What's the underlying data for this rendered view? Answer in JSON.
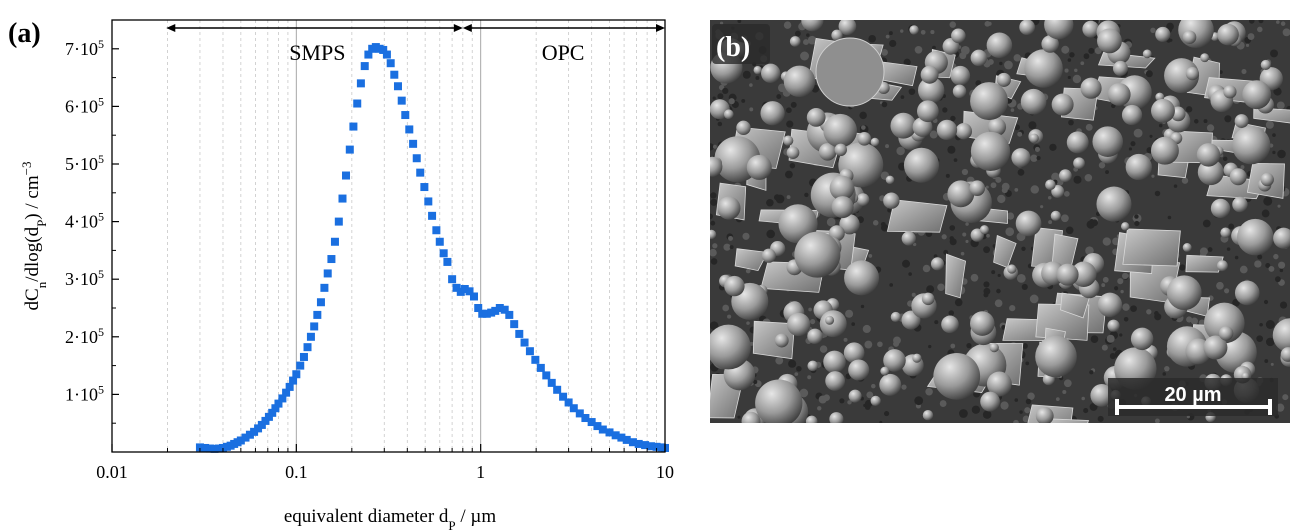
{
  "panel_a_label": "(a)",
  "panel_b_label": "(b)",
  "chart_data": {
    "type": "scatter",
    "title": "",
    "xlabel": "equivalent diameter d_P / µm",
    "ylabel": "dC_n/dlog(d_P) / cm^-3",
    "xscale": "log",
    "xlim": [
      0.01,
      10
    ],
    "ylim": [
      0,
      750000
    ],
    "grid": "vertical minor gridlines (log decades)",
    "marker_color": "#1a6fe0",
    "x_ticks": [
      0.01,
      0.1,
      1,
      10
    ],
    "x_tick_labels": [
      "0.01",
      "0.1",
      "1",
      "10"
    ],
    "y_ticks": [
      100000,
      200000,
      300000,
      400000,
      500000,
      600000,
      700000
    ],
    "y_tick_labels": [
      {
        "mant": "1·10",
        "exp": "5"
      },
      {
        "mant": "2·10",
        "exp": "5"
      },
      {
        "mant": "3·10",
        "exp": "5"
      },
      {
        "mant": "4·10",
        "exp": "5"
      },
      {
        "mant": "5·10",
        "exp": "5"
      },
      {
        "mant": "6·10",
        "exp": "5"
      },
      {
        "mant": "7·10",
        "exp": "5"
      }
    ],
    "xlabel_parts": {
      "pre": "equivalent diameter d",
      "sub": "P",
      "post": " / µm"
    },
    "ylabel_parts": {
      "pre": "dC",
      "sub1": "n",
      "mid": "/dlog(d",
      "sub2": "P",
      "post": ") / cm",
      "sup": "−3"
    },
    "annotations": [
      {
        "text": "SMPS",
        "x_range": [
          0.0197,
          0.8
        ]
      },
      {
        "text": "OPC",
        "x_range": [
          0.8,
          10
        ]
      }
    ],
    "reference_lines": [
      0.1,
      1
    ],
    "series": [
      {
        "name": "SMPS",
        "x": [
          0.03,
          0.032,
          0.034,
          0.036,
          0.038,
          0.04,
          0.042,
          0.044,
          0.046,
          0.048,
          0.05,
          0.053,
          0.056,
          0.059,
          0.062,
          0.065,
          0.068,
          0.071,
          0.074,
          0.077,
          0.08,
          0.084,
          0.088,
          0.092,
          0.096,
          0.1,
          0.105,
          0.11,
          0.115,
          0.12,
          0.125,
          0.13,
          0.136,
          0.142,
          0.148,
          0.155,
          0.162,
          0.17,
          0.178,
          0.186,
          0.195,
          0.204,
          0.214,
          0.224,
          0.235,
          0.246,
          0.258,
          0.27,
          0.283,
          0.296,
          0.31,
          0.325,
          0.34,
          0.356,
          0.373,
          0.39,
          0.41,
          0.43,
          0.45,
          0.47,
          0.495,
          0.52,
          0.545,
          0.575,
          0.6,
          0.63,
          0.66,
          0.7,
          0.74,
          0.78
        ],
        "y": [
          8000,
          7000,
          6000,
          5500,
          6000,
          7000,
          9000,
          11000,
          14000,
          17000,
          20000,
          25000,
          30000,
          35000,
          41000,
          47000,
          54000,
          61000,
          68000,
          76000,
          84000,
          93000,
          103000,
          113000,
          124000,
          135000,
          150000,
          165000,
          182000,
          200000,
          218000,
          238000,
          260000,
          285000,
          310000,
          335000,
          365000,
          400000,
          440000,
          480000,
          525000,
          565000,
          605000,
          640000,
          670000,
          690000,
          700000,
          703000,
          700000,
          698000,
          690000,
          675000,
          655000,
          635000,
          610000,
          585000,
          560000,
          535000,
          510000,
          485000,
          460000,
          435000,
          410000,
          385000,
          365000,
          345000,
          330000,
          300000,
          285000,
          278000
        ]
      },
      {
        "name": "OPC",
        "x": [
          0.82,
          0.87,
          0.92,
          0.97,
          1.02,
          1.08,
          1.14,
          1.2,
          1.27,
          1.35,
          1.43,
          1.52,
          1.62,
          1.73,
          1.85,
          1.98,
          2.12,
          2.27,
          2.43,
          2.6,
          2.8,
          3.0,
          3.2,
          3.45,
          3.7,
          4.0,
          4.3,
          4.6,
          5.0,
          5.4,
          5.8,
          6.2,
          6.7,
          7.2,
          7.8,
          8.4,
          9.0,
          9.6,
          10.0
        ],
        "y": [
          283000,
          279000,
          270000,
          250000,
          240000,
          240000,
          242000,
          245000,
          250000,
          247000,
          238000,
          222000,
          205000,
          190000,
          175000,
          160000,
          146000,
          133000,
          120000,
          108000,
          96000,
          86000,
          76000,
          67000,
          59000,
          52000,
          45000,
          39000,
          34000,
          29000,
          25000,
          21000,
          17000,
          14000,
          12000,
          10000,
          9000,
          8000,
          7000
        ]
      }
    ]
  },
  "sem_image": {
    "scale_bar_label": "20 µm"
  }
}
